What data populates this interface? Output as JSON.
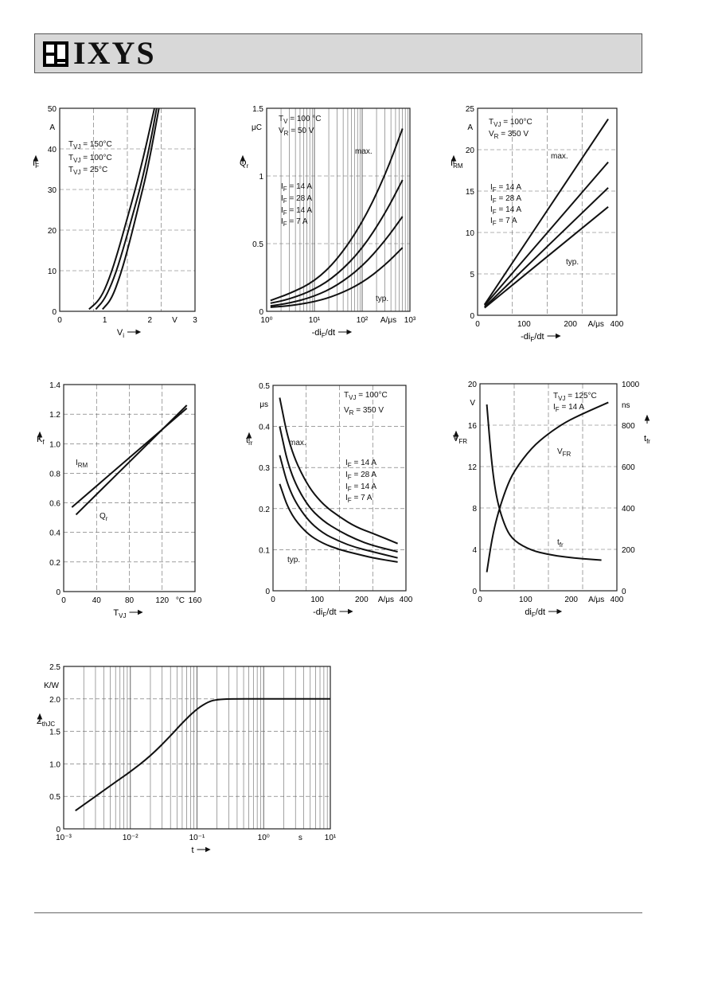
{
  "header": {
    "brand": "IXYS"
  },
  "chart_data": [
    {
      "type": "line",
      "ylabel": "I",
      "ylabel_sub": "F",
      "yunit": "A",
      "xlabel": "V",
      "xlabel_sub": "i",
      "xlim": [
        0,
        3
      ],
      "ylim": [
        0,
        50
      ],
      "xticks": [
        "0",
        "1",
        "2",
        "V",
        "3"
      ],
      "yticks": [
        "0",
        "10",
        "20",
        "30",
        "40",
        "50"
      ],
      "annotations": [
        "T_VJ = 150°C",
        "T_VJ = 100°C",
        "T_VJ =  25°C"
      ],
      "series": [
        {
          "name": "T_VJ = 150°C",
          "x": [
            0.65,
            0.9,
            1.1,
            1.3,
            1.5,
            1.7,
            1.9,
            2.1
          ],
          "y": [
            0.5,
            3,
            8,
            15,
            23,
            31,
            40,
            50
          ]
        },
        {
          "name": "T_VJ = 100°C",
          "x": [
            0.8,
            1.0,
            1.2,
            1.4,
            1.6,
            1.8,
            2.0,
            2.15
          ],
          "y": [
            0.5,
            3,
            8,
            15,
            23,
            31,
            41,
            50
          ]
        },
        {
          "name": "T_VJ =  25°C",
          "x": [
            0.95,
            1.15,
            1.35,
            1.55,
            1.75,
            1.95,
            2.2
          ],
          "y": [
            0.5,
            3,
            9,
            17,
            26,
            35,
            50
          ]
        }
      ]
    },
    {
      "type": "line",
      "xscale": "log",
      "ylabel": "Q",
      "ylabel_sub": "r",
      "yunit": "μC",
      "xlabel": "-di",
      "xlabel_sub": "F",
      "xlabel_end": "/dt",
      "xlim": [
        1,
        1000
      ],
      "ylim": [
        0,
        1.5
      ],
      "xticks": [
        "10⁰",
        "10¹",
        "10²",
        "A/μs",
        "10³"
      ],
      "yticks": [
        "0",
        "0.5",
        "1",
        "1.5"
      ],
      "annotations": [
        "T_V = 100 °C",
        "V_R =  50  V",
        "max.",
        "I_F = 14 A",
        "I_F = 28 A",
        "I_F = 14 A",
        "I_F =  7 A",
        "typ."
      ],
      "series": [
        {
          "name": "max.",
          "x": [
            1.2,
            3,
            10,
            30,
            100,
            300,
            700
          ],
          "y": [
            0.08,
            0.13,
            0.22,
            0.38,
            0.65,
            1.0,
            1.35
          ]
        },
        {
          "name": "I_F = 28 A",
          "x": [
            1.2,
            3,
            10,
            30,
            100,
            300,
            700
          ],
          "y": [
            0.06,
            0.09,
            0.16,
            0.27,
            0.46,
            0.72,
            0.97
          ]
        },
        {
          "name": "I_F = 14 A",
          "x": [
            1.2,
            3,
            10,
            30,
            100,
            300,
            700
          ],
          "y": [
            0.04,
            0.06,
            0.11,
            0.19,
            0.33,
            0.52,
            0.7
          ]
        },
        {
          "name": "I_F =  7 A",
          "x": [
            1.2,
            3,
            10,
            30,
            100,
            300,
            700
          ],
          "y": [
            0.03,
            0.04,
            0.07,
            0.12,
            0.21,
            0.34,
            0.47
          ]
        }
      ]
    },
    {
      "type": "line",
      "ylabel": "I",
      "ylabel_sub": "RM",
      "yunit": "A",
      "xlabel": "-di",
      "xlabel_sub": "F",
      "xlabel_end": "/dt",
      "xlim": [
        0,
        400
      ],
      "ylim": [
        0,
        25
      ],
      "xticks": [
        "0",
        "100",
        "200",
        "A/μs",
        "400"
      ],
      "yticks": [
        "0",
        "5",
        "10",
        "15",
        "20",
        "25"
      ],
      "annotations": [
        "T_VJ = 100°C",
        "V_R = 350 V",
        "max.",
        "I_F = 14 A",
        "I_F = 28 A",
        "I_F = 14 A",
        "I_F =  7 A",
        "typ."
      ],
      "series": [
        {
          "name": "max.",
          "x": [
            20,
            375
          ],
          "y": [
            1.3,
            23.7
          ]
        },
        {
          "name": "I_F = 28 A",
          "x": [
            20,
            375
          ],
          "y": [
            1.2,
            18.5
          ]
        },
        {
          "name": "I_F = 14 A",
          "x": [
            20,
            375
          ],
          "y": [
            1.0,
            15.4
          ]
        },
        {
          "name": "I_F =  7 A",
          "x": [
            20,
            375
          ],
          "y": [
            0.9,
            13.1
          ]
        }
      ]
    },
    {
      "type": "line",
      "ylabel": "K",
      "ylabel_sub": "f",
      "xlabel": "T",
      "xlabel_sub": "VJ",
      "xlim": [
        0,
        160
      ],
      "ylim": [
        0,
        1.4
      ],
      "xticks": [
        "0",
        "40",
        "80",
        "120",
        "°C",
        "160"
      ],
      "yticks": [
        "0",
        "0.2",
        "0.4",
        "0.6",
        "0.8",
        "1.0",
        "1.2",
        "1.4"
      ],
      "annotations": [
        "I_RM",
        "Q_r"
      ],
      "series": [
        {
          "name": "I_RM",
          "x": [
            10,
            150
          ],
          "y": [
            0.57,
            1.24
          ]
        },
        {
          "name": "Q_r",
          "x": [
            15,
            150
          ],
          "y": [
            0.52,
            1.26
          ]
        }
      ]
    },
    {
      "type": "line",
      "ylabel": "t",
      "ylabel_sub": "rr",
      "yunit": "μs",
      "xlabel": "-di",
      "xlabel_sub": "F",
      "xlabel_end": "/dt",
      "xlim": [
        0,
        400
      ],
      "ylim": [
        0,
        0.5
      ],
      "xticks": [
        "0",
        "100",
        "200",
        "A/μs",
        "400"
      ],
      "yticks": [
        "0",
        "0.1",
        "0.2",
        "0.3",
        "0.4",
        "0.5"
      ],
      "annotations": [
        "T_VJ = 100°C",
        "V_R = 350 V",
        "max.",
        "I_F = 14 A",
        "I_F = 28 A",
        "I_F = 14 A",
        "I_F =  7 A",
        "typ."
      ],
      "series": [
        {
          "name": "max.",
          "x": [
            20,
            50,
            100,
            150,
            200,
            250,
            300,
            375
          ],
          "y": [
            0.47,
            0.35,
            0.26,
            0.21,
            0.18,
            0.155,
            0.14,
            0.115
          ]
        },
        {
          "name": "I_F = 28 A",
          "x": [
            20,
            50,
            100,
            150,
            200,
            250,
            300,
            375
          ],
          "y": [
            0.4,
            0.29,
            0.21,
            0.17,
            0.145,
            0.125,
            0.11,
            0.095
          ]
        },
        {
          "name": "I_F = 14 A",
          "x": [
            20,
            50,
            100,
            150,
            200,
            250,
            300,
            375
          ],
          "y": [
            0.33,
            0.24,
            0.175,
            0.14,
            0.12,
            0.105,
            0.095,
            0.08
          ]
        },
        {
          "name": "I_F =  7 A",
          "x": [
            20,
            50,
            100,
            150,
            200,
            250,
            300,
            375
          ],
          "y": [
            0.26,
            0.19,
            0.14,
            0.115,
            0.1,
            0.09,
            0.08,
            0.07
          ]
        }
      ]
    },
    {
      "type": "line",
      "ylabel": "V",
      "ylabel_sub": "FR",
      "yunit": "V",
      "y2label": "t",
      "y2label_sub": "fr",
      "y2unit": "ns",
      "xlabel": "di",
      "xlabel_sub": "F",
      "xlabel_end": "/dt",
      "xlim": [
        0,
        400
      ],
      "ylim": [
        0,
        20
      ],
      "y2lim": [
        0,
        1000
      ],
      "xticks": [
        "0",
        "100",
        "200",
        "A/μs",
        "400"
      ],
      "yticks": [
        "0",
        "4",
        "8",
        "12",
        "16",
        "20"
      ],
      "y2ticks": [
        "0",
        "200",
        "400",
        "600",
        "800",
        "1000"
      ],
      "annotations": [
        "T_VJ = 125°C",
        "I_F  =  14 A",
        "V_FR",
        "t_fr"
      ],
      "series": [
        {
          "name": "V_FR",
          "axis": "left",
          "x": [
            20,
            35,
            50,
            75,
            100,
            150,
            200,
            250,
            300,
            375
          ],
          "y": [
            1.8,
            5.0,
            7.2,
            9.8,
            11.6,
            13.8,
            15.2,
            16.3,
            17.1,
            18.2
          ]
        },
        {
          "name": "t_fr",
          "axis": "right",
          "x": [
            20,
            35,
            50,
            75,
            100,
            150,
            200,
            250,
            300,
            355
          ],
          "y": [
            900,
            600,
            430,
            300,
            240,
            195,
            175,
            163,
            155,
            148
          ]
        }
      ]
    },
    {
      "type": "line",
      "xscale": "log",
      "ylabel": "Z",
      "ylabel_sub": "thJC",
      "yunit": "K/W",
      "xlabel": "t",
      "xlim": [
        0.001,
        10
      ],
      "ylim": [
        0,
        2.5
      ],
      "xticks": [
        "10⁻³",
        "10⁻²",
        "10⁻¹",
        "10⁰",
        "s",
        "10¹"
      ],
      "yticks": [
        "0",
        "0.5",
        "1.0",
        "1.5",
        "2.0",
        "2.5"
      ],
      "series": [
        {
          "name": "",
          "x": [
            0.0015,
            0.003,
            0.006,
            0.01,
            0.02,
            0.04,
            0.06,
            0.1,
            0.15,
            0.2,
            0.3,
            1,
            3,
            10
          ],
          "y": [
            0.28,
            0.5,
            0.72,
            0.88,
            1.12,
            1.43,
            1.63,
            1.85,
            1.96,
            1.99,
            2.0,
            2.0,
            2.0,
            2.0
          ]
        }
      ]
    }
  ]
}
